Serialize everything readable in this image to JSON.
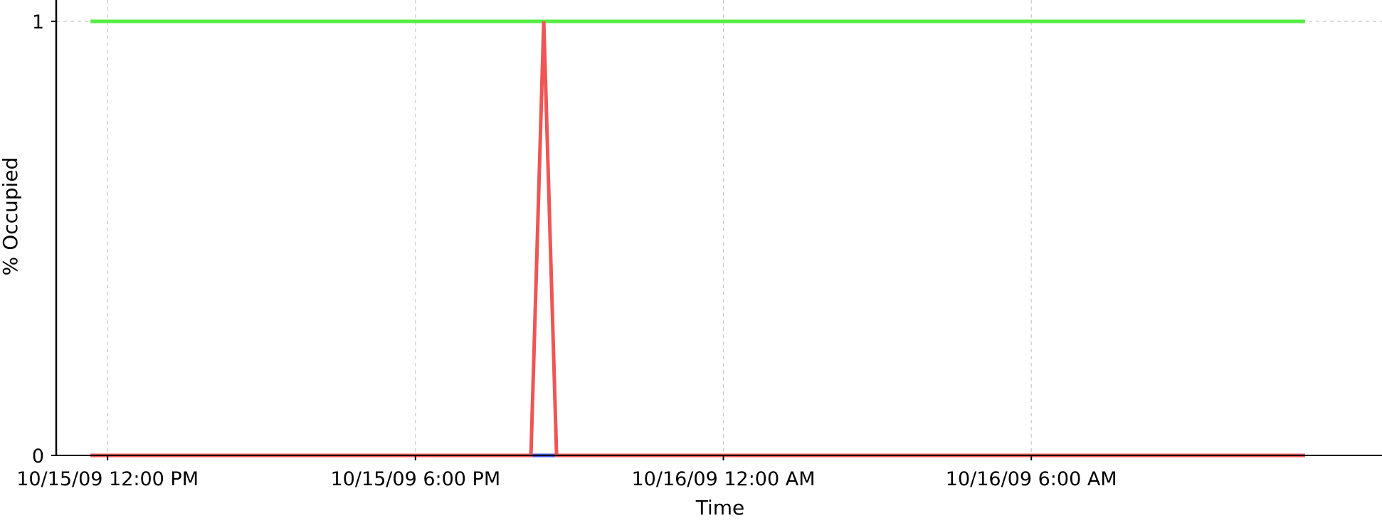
{
  "chart_data": {
    "type": "line",
    "title": "",
    "xlabel": "Time",
    "ylabel": "% Occupied",
    "x_type": "datetime",
    "xlim": [
      "10/15/09 11:00 AM",
      "10/16/09 12:50 PM"
    ],
    "ylim": [
      0,
      1
    ],
    "x_ticks": [
      {
        "value": "10/15/09 12:00 PM",
        "label": "10/15/09 12:00 PM"
      },
      {
        "value": "10/15/09 6:00 PM",
        "label": "10/15/09 6:00 PM"
      },
      {
        "value": "10/16/09 12:00 AM",
        "label": "10/16/09 12:00 AM"
      },
      {
        "value": "10/16/09 6:00 AM",
        "label": "10/16/09 6:00 AM"
      }
    ],
    "y_ticks": [
      {
        "value": 0,
        "label": "0"
      },
      {
        "value": 1,
        "label": "1"
      }
    ],
    "grid": true,
    "legend": "none",
    "series": [
      {
        "color": "#55ee44",
        "x": [
          "10/15/09 11:40 AM",
          "10/16/09 11:20 AM"
        ],
        "y": [
          1,
          1
        ]
      },
      {
        "color": "#4455dd",
        "x": [
          "10/15/09 11:40 AM",
          "10/15/09 8:15 PM",
          "10/15/09 8:45 PM",
          "10/16/09 11:20 AM"
        ],
        "y": [
          0,
          0,
          0,
          0
        ]
      },
      {
        "color": "#f05555",
        "x": [
          "10/15/09 11:40 AM",
          "10/15/09 8:15 PM",
          "10/15/09 8:30 PM",
          "10/15/09 8:45 PM",
          "10/16/09 11:20 AM"
        ],
        "y": [
          0,
          0,
          1,
          0,
          0
        ]
      }
    ]
  }
}
